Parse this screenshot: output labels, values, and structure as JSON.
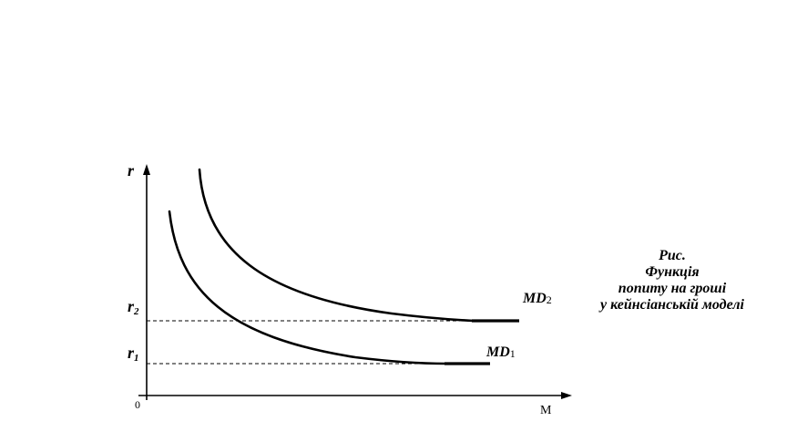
{
  "diagram": {
    "y_axis_label": "r",
    "x_axis_label": "M",
    "origin_label": "0",
    "r2_label": {
      "base": "r",
      "sub": "2"
    },
    "r1_label": {
      "base": "r",
      "sub": "1"
    },
    "curve_md2_label": {
      "base": "MD",
      "sub": "2"
    },
    "curve_md1_label": {
      "base": "MD",
      "sub": "1"
    }
  },
  "caption": {
    "line1": "Рис.",
    "line2": "Функція",
    "line3": "попиту на гроші",
    "line4": "у кейнсіанській моделі"
  }
}
